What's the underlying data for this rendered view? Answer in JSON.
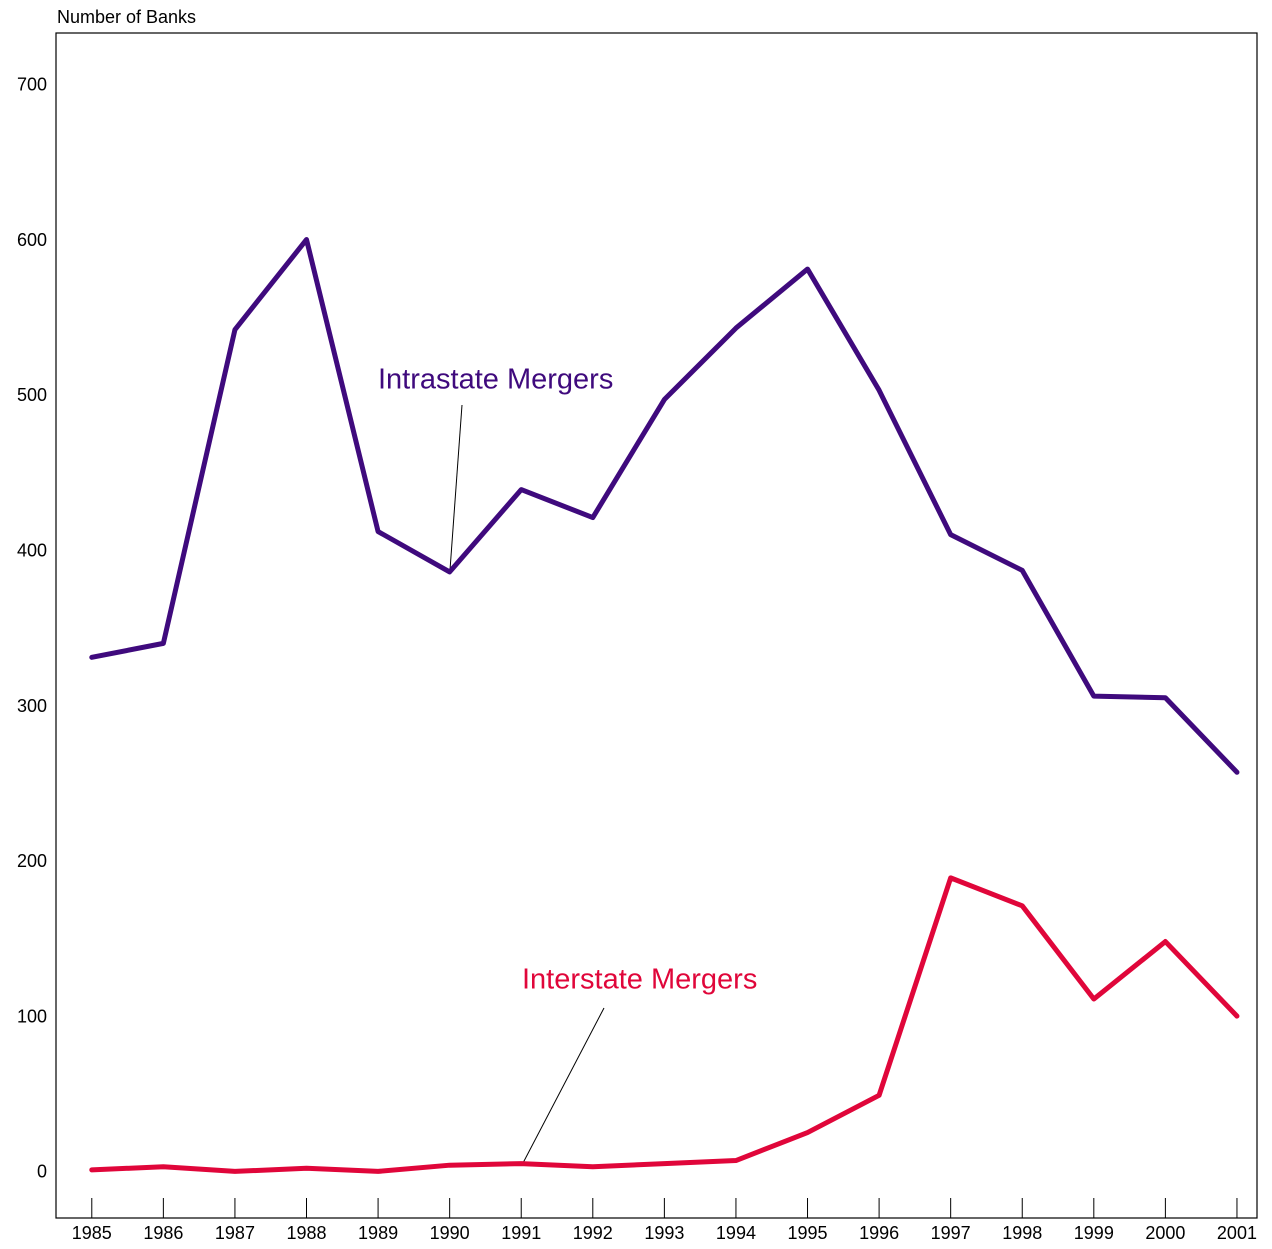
{
  "chart_data": {
    "type": "line",
    "y_axis_label": "Number of Banks",
    "x": [
      1985,
      1986,
      1987,
      1988,
      1989,
      1990,
      1991,
      1992,
      1993,
      1994,
      1995,
      1996,
      1997,
      1998,
      1999,
      2000,
      2001
    ],
    "series": [
      {
        "name": "Intrastate Mergers",
        "color": "#3f0a7d",
        "values": [
          332,
          341,
          543,
          601,
          413,
          387,
          440,
          422,
          498,
          544,
          582,
          504,
          411,
          388,
          307,
          306,
          258
        ]
      },
      {
        "name": "Interstate Mergers",
        "color": "#e0063a",
        "values": [
          2,
          4,
          1,
          3,
          1,
          5,
          6,
          4,
          6,
          8,
          26,
          50,
          190,
          172,
          112,
          149,
          101
        ]
      }
    ],
    "xlim": [
      1984.5,
      2001.28
    ],
    "xticks": [
      1985,
      1986,
      1987,
      1988,
      1989,
      1990,
      1991,
      1992,
      1993,
      1994,
      1995,
      1996,
      1997,
      1998,
      1999,
      2000,
      2001
    ],
    "ylim": [
      -29,
      734
    ],
    "yticks": [
      0,
      100,
      200,
      300,
      400,
      500,
      600,
      700
    ],
    "grid": false
  }
}
